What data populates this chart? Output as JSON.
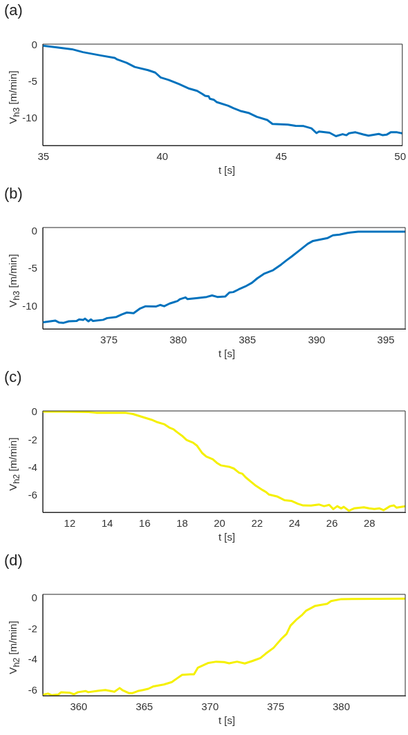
{
  "chart_data": [
    {
      "type": "line",
      "title": "(a)",
      "xlabel": "t [s]",
      "ylabel": "V$_{h3}$ [m/min]",
      "color": "#0072bd",
      "xlim": [
        34.97,
        50.09
      ],
      "ylim": [
        -13.7,
        0.2
      ],
      "xticks": [
        35,
        40,
        45,
        50
      ],
      "yticks": [
        -10,
        -5,
        0
      ],
      "x": [
        34.97,
        35.57,
        36.2,
        36.66,
        37.4,
        38.0,
        38.1,
        38.5,
        38.84,
        39.4,
        39.7,
        39.93,
        40.26,
        40.7,
        41.13,
        41.46,
        41.68,
        41.8,
        41.95,
        42.0,
        42.17,
        42.28,
        42.77,
        42.99,
        43.32,
        43.65,
        43.97,
        44.41,
        44.63,
        45.28,
        45.6,
        45.94,
        46.27,
        46.48,
        46.59,
        47.03,
        47.3,
        47.58,
        47.74,
        47.85,
        48.12,
        48.45,
        48.67,
        49.1,
        49.27,
        49.43,
        49.6,
        49.87,
        50.07
      ],
      "values": [
        0,
        -0.24,
        -0.5,
        -0.9,
        -1.35,
        -1.7,
        -1.9,
        -2.36,
        -2.93,
        -3.37,
        -3.7,
        -4.38,
        -4.7,
        -5.28,
        -5.9,
        -6.2,
        -6.63,
        -6.9,
        -6.97,
        -7.3,
        -7.44,
        -7.74,
        -8.25,
        -8.59,
        -9.0,
        -9.26,
        -9.76,
        -10.2,
        -10.74,
        -10.84,
        -11.0,
        -11.04,
        -11.35,
        -12.0,
        -11.78,
        -11.95,
        -12.42,
        -12.15,
        -12.29,
        -12.02,
        -11.89,
        -12.19,
        -12.36,
        -12.12,
        -12.29,
        -12.22,
        -11.89,
        -11.89,
        -12.02
      ]
    },
    {
      "type": "line",
      "title": "(b)",
      "xlabel": "t [s]",
      "ylabel": "V$_{h3}$ [m/min]",
      "color": "#0072bd",
      "xlim": [
        370.22,
        396.4
      ],
      "ylim": [
        -13,
        0.55
      ],
      "xticks": [
        375,
        380,
        385,
        390,
        395
      ],
      "yticks": [
        -10,
        -5,
        0
      ],
      "x": [
        370.22,
        371.12,
        371.41,
        371.7,
        372.1,
        372.66,
        372.85,
        373.14,
        373.27,
        373.52,
        373.7,
        373.85,
        374.58,
        374.87,
        375.54,
        375.92,
        376.3,
        376.78,
        377.26,
        377.65,
        378.42,
        378.7,
        378.99,
        379.38,
        379.95,
        380.14,
        380.53,
        380.68,
        381.3,
        382.06,
        382.45,
        382.83,
        383.41,
        383.7,
        383.98,
        384.37,
        384.85,
        385.33,
        385.71,
        386.19,
        386.86,
        387.44,
        387.82,
        388.2,
        388.78,
        389.36,
        389.74,
        390.8,
        391.18,
        391.66,
        392.24,
        393.0,
        396.4
      ],
      "values": [
        -12.12,
        -11.89,
        -12.15,
        -12.2,
        -11.99,
        -11.95,
        -11.73,
        -11.8,
        -11.63,
        -11.99,
        -11.73,
        -11.95,
        -11.79,
        -11.56,
        -11.4,
        -11.07,
        -10.81,
        -10.91,
        -10.26,
        -9.97,
        -10.0,
        -9.8,
        -9.97,
        -9.61,
        -9.28,
        -9.02,
        -8.79,
        -9.02,
        -8.89,
        -8.73,
        -8.53,
        -8.73,
        -8.66,
        -8.14,
        -8.08,
        -7.72,
        -7.33,
        -6.84,
        -6.25,
        -5.64,
        -5.15,
        -4.4,
        -3.84,
        -3.32,
        -2.48,
        -1.63,
        -1.24,
        -0.85,
        -0.49,
        -0.39,
        -0.16,
        0,
        0
      ]
    },
    {
      "type": "line",
      "title": "(c)",
      "xlabel": "t [s]",
      "ylabel": "V$_{h2}$ [m/min]",
      "color": "#f5f000",
      "xlim": [
        10.56,
        29.91
      ],
      "ylim": [
        -7.17,
        0.1
      ],
      "xticks": [
        12,
        14,
        16,
        18,
        20,
        22,
        24,
        26,
        28
      ],
      "yticks": [
        -6,
        -4,
        -2,
        0
      ],
      "x": [
        10.56,
        11.61,
        13.0,
        13.42,
        14.96,
        15.38,
        15.94,
        16.36,
        16.64,
        17.06,
        17.34,
        17.54,
        17.75,
        18.03,
        18.24,
        18.59,
        18.8,
        19.08,
        19.29,
        19.64,
        19.85,
        20.06,
        20.55,
        20.76,
        21.04,
        21.22,
        21.39,
        21.66,
        21.94,
        22.29,
        22.5,
        22.64,
        23.06,
        23.48,
        23.83,
        24.18,
        24.46,
        24.88,
        25.3,
        25.58,
        25.85,
        26.07,
        26.28,
        26.49,
        26.63,
        26.9,
        27.18,
        27.7,
        27.98,
        28.26,
        28.54,
        28.75,
        29.1,
        29.31,
        29.45,
        29.91
      ],
      "values": [
        0.05,
        0.05,
        0.02,
        -0.03,
        -0.03,
        -0.12,
        -0.36,
        -0.53,
        -0.69,
        -0.86,
        -1.11,
        -1.22,
        -1.44,
        -1.72,
        -1.98,
        -2.18,
        -2.4,
        -2.93,
        -3.17,
        -3.37,
        -3.62,
        -3.8,
        -3.92,
        -4.03,
        -4.33,
        -4.41,
        -4.66,
        -4.96,
        -5.27,
        -5.57,
        -5.74,
        -5.9,
        -6.03,
        -6.31,
        -6.35,
        -6.56,
        -6.68,
        -6.69,
        -6.61,
        -6.73,
        -6.64,
        -6.94,
        -6.73,
        -6.89,
        -6.78,
        -7.06,
        -6.89,
        -6.81,
        -6.89,
        -6.94,
        -6.89,
        -7.02,
        -6.73,
        -6.68,
        -6.84,
        -6.73
      ]
    },
    {
      "type": "line",
      "title": "(d)",
      "xlabel": "t [s]",
      "ylabel": "V$_{h2}$ [m/min]",
      "color": "#f5f000",
      "xlim": [
        357.26,
        384.87
      ],
      "ylim": [
        -6.33,
        0.28
      ],
      "xticks": [
        360,
        365,
        370,
        375,
        380
      ],
      "yticks": [
        -6,
        -4,
        -2,
        0
      ],
      "x": [
        357.26,
        357.66,
        357.95,
        358.45,
        358.65,
        359.34,
        359.64,
        359.94,
        360.54,
        360.73,
        361.53,
        362.03,
        362.72,
        363.12,
        363.32,
        363.81,
        364.11,
        364.5,
        364.9,
        365.3,
        365.7,
        366.49,
        367.09,
        367.49,
        367.88,
        368.48,
        368.78,
        369.08,
        369.88,
        370.48,
        371.07,
        371.46,
        372.06,
        372.65,
        373.25,
        373.84,
        374.24,
        374.84,
        375.44,
        375.83,
        376.13,
        376.63,
        377.03,
        377.33,
        378.02,
        378.92,
        379.22,
        380.0,
        384.87
      ],
      "values": [
        -6.27,
        -6.19,
        -6.3,
        -6.25,
        -6.11,
        -6.14,
        -6.24,
        -6.1,
        -6.03,
        -6.1,
        -6.0,
        -5.96,
        -6.07,
        -5.83,
        -5.96,
        -6.16,
        -6.16,
        -6.03,
        -5.96,
        -5.88,
        -5.72,
        -5.6,
        -5.44,
        -5.2,
        -4.97,
        -4.94,
        -4.94,
        -4.5,
        -4.19,
        -4.11,
        -4.14,
        -4.22,
        -4.11,
        -4.23,
        -4.06,
        -3.87,
        -3.59,
        -3.21,
        -2.62,
        -2.3,
        -1.76,
        -1.33,
        -1.05,
        -0.78,
        -0.47,
        -0.34,
        -0.16,
        -0.03,
        0
      ]
    }
  ]
}
